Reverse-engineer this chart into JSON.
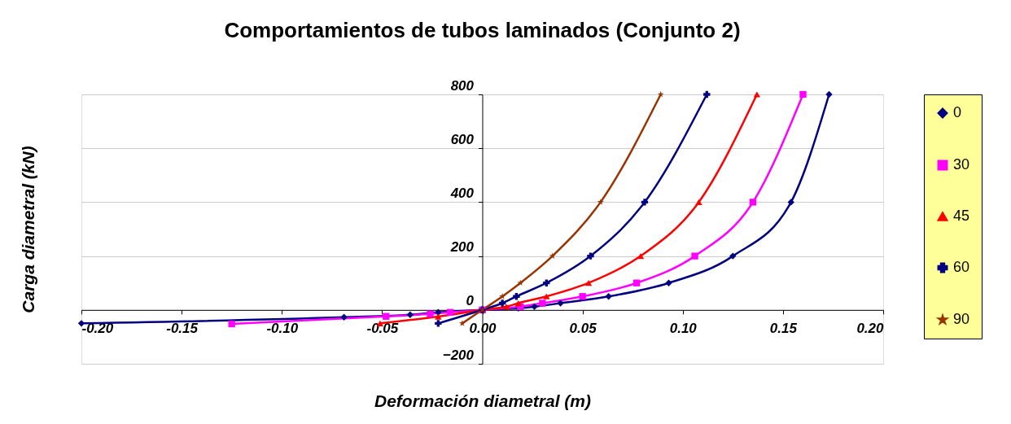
{
  "chart_data": {
    "type": "line",
    "title": "Comportamientos de tubos laminados (Conjunto 2)",
    "xlabel": "Deformación diametral (m)",
    "ylabel": "Carga diametral (kN)",
    "xlim": [
      -0.2,
      0.2
    ],
    "xticks": [
      {
        "value": -0.2,
        "label": "-0.20"
      },
      {
        "value": -0.15,
        "label": "-0.15"
      },
      {
        "value": -0.1,
        "label": "-0.10"
      },
      {
        "value": -0.05,
        "label": "-0.05"
      },
      {
        "value": 0,
        "label": "0.00"
      },
      {
        "value": 0.05,
        "label": "0.05"
      },
      {
        "value": 0.1,
        "label": "0.10"
      },
      {
        "value": 0.15,
        "label": "0.15"
      },
      {
        "value": 0.2,
        "label": "0.20"
      }
    ],
    "ylim": [
      -200,
      800
    ],
    "yticks": [
      -200,
      0,
      200,
      400,
      600,
      800
    ],
    "grid": "y",
    "legend": "right",
    "series": [
      {
        "name": "0",
        "color": "#000080",
        "marker": "diamond",
        "x": [
          -0.2,
          -0.069,
          -0.036,
          -0.022,
          0,
          0.018,
          0.026,
          0.039,
          0.063,
          0.093,
          0.125,
          0.154,
          0.173
        ],
        "values": [
          -50,
          -27,
          -18,
          -9,
          0,
          6,
          12,
          25,
          50,
          100,
          200,
          400,
          800
        ]
      },
      {
        "name": "30",
        "color": "#ff00ff",
        "marker": "square",
        "x": [
          -0.125,
          -0.048,
          -0.026,
          -0.016,
          0,
          0.019,
          0.03,
          0.05,
          0.077,
          0.106,
          0.135,
          0.16
        ],
        "values": [
          -52,
          -24,
          -15,
          -9,
          0,
          12,
          25,
          50,
          100,
          200,
          400,
          800
        ]
      },
      {
        "name": "45",
        "color": "#ff0000",
        "marker": "triangle",
        "x": [
          -0.051,
          -0.022,
          0,
          0.012,
          0.018,
          0.032,
          0.053,
          0.079,
          0.108,
          0.137
        ],
        "values": [
          -50,
          -25,
          0,
          12,
          25,
          50,
          100,
          200,
          400,
          800
        ]
      },
      {
        "name": "60",
        "color": "#000080",
        "marker": "cross",
        "x": [
          -0.022,
          0,
          0.01,
          0.017,
          0.032,
          0.054,
          0.081,
          0.112
        ],
        "values": [
          -50,
          0,
          25,
          50,
          100,
          200,
          400,
          800
        ]
      },
      {
        "name": "90",
        "color": "#993300",
        "marker": "star",
        "x": [
          -0.01,
          0,
          0.01,
          0.019,
          0.035,
          0.059,
          0.089
        ],
        "values": [
          -50,
          0,
          50,
          100,
          200,
          400,
          800
        ]
      }
    ]
  }
}
